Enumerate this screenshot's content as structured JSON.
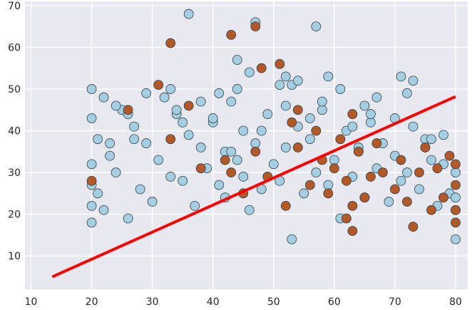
{
  "chart_data": {
    "type": "scatter",
    "title": "",
    "xlabel": "",
    "ylabel": "",
    "xlim": [
      9,
      82
    ],
    "ylim": [
      2,
      71
    ],
    "xticks": [
      10,
      20,
      30,
      40,
      50,
      60,
      70,
      80
    ],
    "yticks": [
      10,
      20,
      30,
      40,
      50,
      60,
      70
    ],
    "grid": true,
    "legend": "none",
    "colors": {
      "background": "#e8e8f1",
      "grid": "#ffffff",
      "class_0": "#a6cee3",
      "class_1": "#b15928",
      "fit_line": "#ff0000",
      "marker_edge": "#33414a"
    },
    "series": [
      {
        "class": 0,
        "x": [
          20,
          20,
          20,
          20,
          20,
          20,
          21,
          21,
          22,
          22,
          23,
          24,
          25,
          26,
          27,
          28,
          29,
          30,
          31,
          33,
          34,
          35,
          36,
          37,
          38,
          39,
          40,
          41,
          42,
          42,
          43,
          44,
          45,
          45,
          46,
          47,
          48,
          49,
          50,
          51,
          52,
          53,
          54,
          55,
          56,
          57,
          58,
          59,
          60,
          61,
          62,
          63,
          64,
          65,
          66,
          67,
          68,
          69,
          70,
          71,
          72,
          73,
          74,
          75,
          76,
          77,
          78,
          79,
          80,
          80,
          80,
          80,
          33,
          36,
          41,
          47,
          57,
          32,
          44,
          53,
          59,
          65,
          73,
          26,
          29,
          38,
          46,
          51,
          61,
          67,
          71,
          24,
          35,
          48,
          56,
          63,
          78,
          23,
          34,
          40,
          52,
          66,
          75,
          27,
          43,
          58,
          64,
          70,
          44,
          52,
          54,
          72,
          76
        ],
        "y": [
          50,
          43,
          32,
          27,
          22,
          18,
          38,
          25,
          48,
          21,
          34,
          30,
          45,
          19,
          41,
          26,
          37,
          23,
          33,
          29,
          44,
          28,
          39,
          22,
          36,
          31,
          42,
          27,
          24,
          35,
          47,
          33,
          29,
          40,
          21,
          37,
          26,
          44,
          32,
          28,
          36,
          14,
          41,
          25,
          38,
          30,
          45,
          27,
          33,
          19,
          40,
          29,
          35,
          24,
          42,
          31,
          37,
          23,
          34,
          28,
          30,
          41,
          26,
          36,
          33,
          22,
          32,
          25,
          30,
          24,
          21,
          14,
          50,
          68,
          49,
          66,
          65,
          48,
          57,
          51,
          53,
          46,
          52,
          44,
          49,
          47,
          54,
          51,
          50,
          48,
          53,
          46,
          42,
          40,
          43,
          41,
          39,
          37,
          45,
          43,
          46,
          44,
          38,
          38,
          35,
          47,
          36,
          43,
          50,
          53,
          52,
          49,
          38
        ]
      },
      {
        "class": 1,
        "x": [
          20,
          26,
          31,
          33,
          36,
          38,
          42,
          43,
          45,
          47,
          49,
          51,
          52,
          53,
          54,
          56,
          57,
          58,
          59,
          60,
          61,
          62,
          63,
          63,
          64,
          65,
          66,
          67,
          68,
          70,
          71,
          72,
          74,
          75,
          76,
          77,
          78,
          79,
          80,
          80,
          80,
          80,
          43,
          47,
          33,
          48,
          63,
          54,
          62,
          73
        ],
        "y": [
          28,
          45,
          51,
          61,
          46,
          31,
          33,
          63,
          25,
          65,
          29,
          56,
          22,
          42,
          36,
          27,
          40,
          33,
          25,
          31,
          38,
          28,
          22,
          16,
          35,
          24,
          29,
          37,
          30,
          26,
          33,
          23,
          30,
          36,
          21,
          31,
          24,
          34,
          27,
          21,
          18,
          32,
          30,
          35,
          38,
          55,
          44,
          45,
          19,
          17
        ]
      }
    ],
    "fit_line": {
      "x": [
        13.5,
        80
      ],
      "y": [
        5,
        48.2
      ]
    }
  }
}
